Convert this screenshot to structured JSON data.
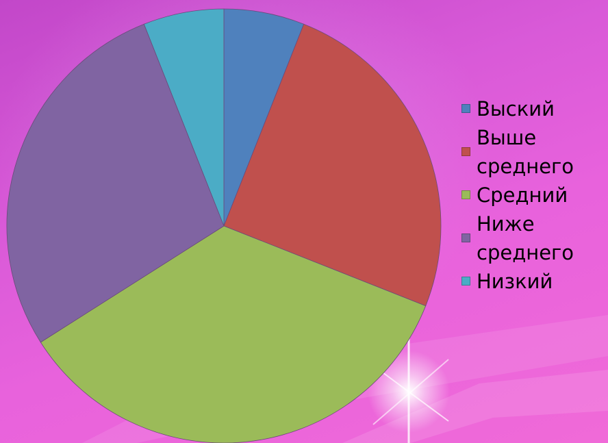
{
  "chart_data": {
    "type": "pie",
    "title": "",
    "categories": [
      "Выский",
      "Выше среднего",
      "Средний",
      "Ниже среднего",
      "Низкий"
    ],
    "values": [
      6,
      25,
      35,
      28,
      6
    ],
    "colors": [
      "#4f81bd",
      "#c0504d",
      "#9bbb59",
      "#8064a2",
      "#4bacc6"
    ],
    "legend_position": "right"
  }
}
